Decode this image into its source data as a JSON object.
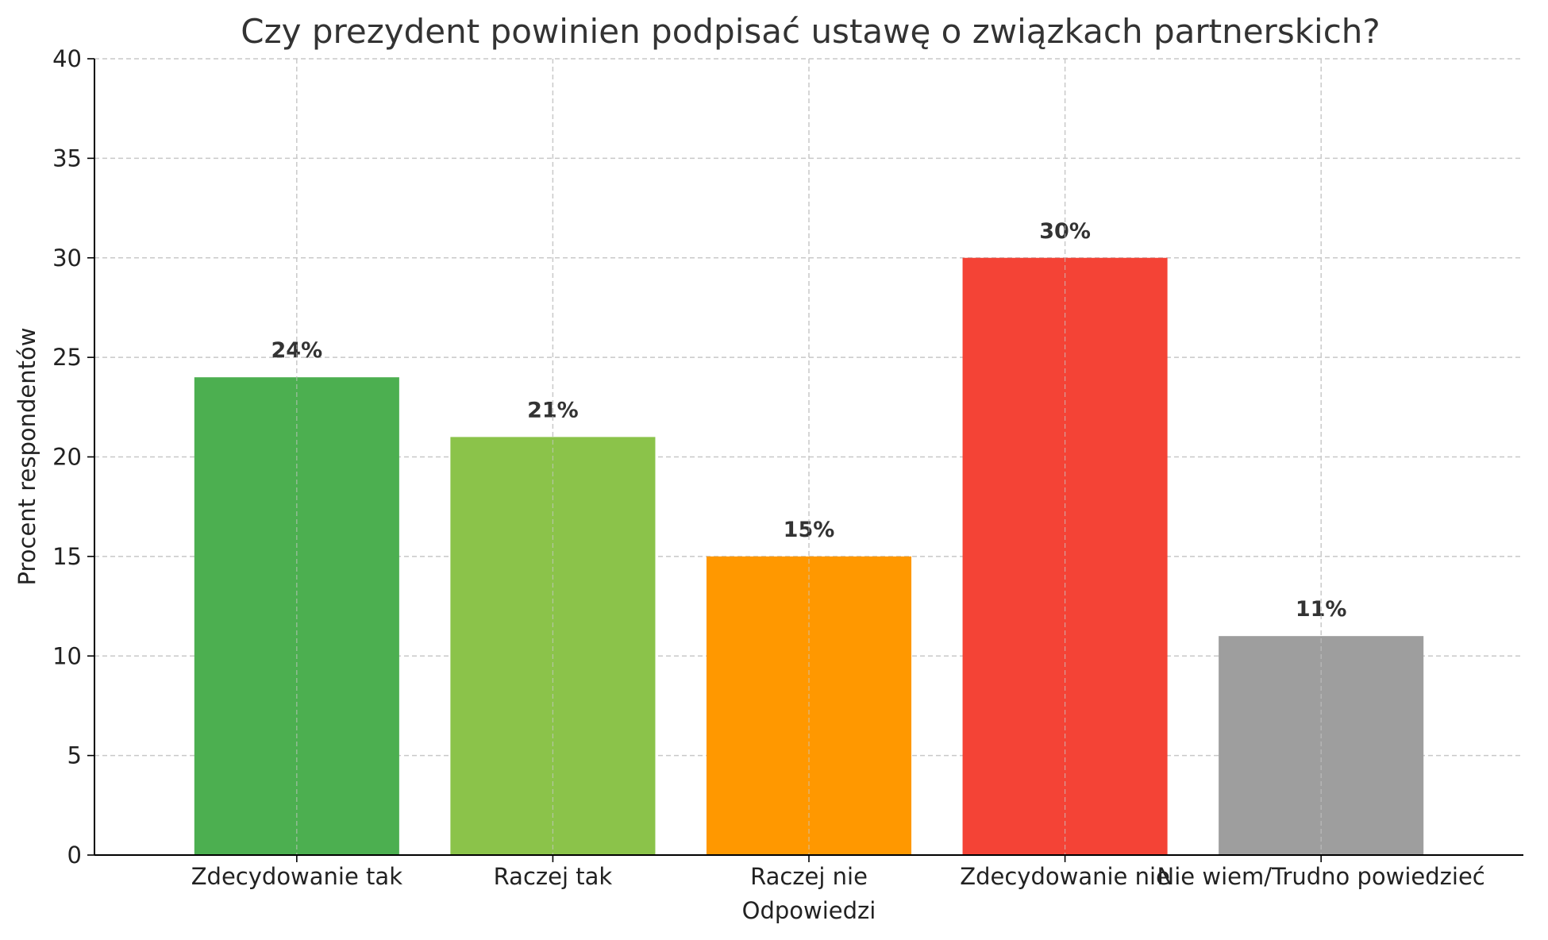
{
  "chart_data": {
    "type": "bar",
    "title": "Czy prezydent powinien podpisać ustawę o związkach partnerskich?",
    "xlabel": "Odpowiedzi",
    "ylabel": "Procent respondentów",
    "categories": [
      "Zdecydowanie tak",
      "Raczej tak",
      "Raczej nie",
      "Zdecydowanie nie",
      "Nie wiem/Trudno powiedzieć"
    ],
    "values": [
      24,
      21,
      15,
      30,
      11
    ],
    "data_labels": [
      "24%",
      "21%",
      "15%",
      "30%",
      "11%"
    ],
    "colors": [
      "#4caf50",
      "#8bc34a",
      "#ff9800",
      "#f44336",
      "#9e9e9e"
    ],
    "ylim": [
      0,
      40
    ],
    "yticks": [
      0,
      5,
      10,
      15,
      20,
      25,
      30,
      35,
      40
    ],
    "grid": true
  }
}
